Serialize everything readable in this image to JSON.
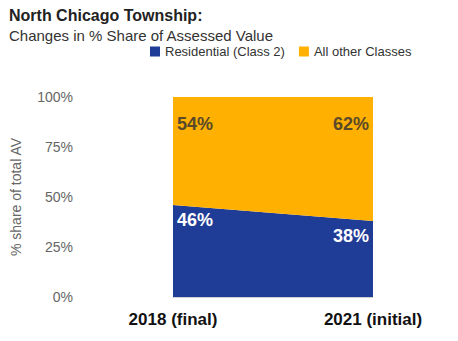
{
  "chart_data": {
    "type": "area",
    "title": "North Chicago Township:",
    "subtitle": "Changes in % Share of Assessed Value",
    "y_label": "% share of total AV",
    "categories": [
      "2018 (final)",
      "2021 (initial)"
    ],
    "series": [
      {
        "name": "Residential (Class 2)",
        "color": "#1f3c96",
        "values": [
          46,
          38
        ],
        "value_labels": [
          "46%",
          "38%"
        ]
      },
      {
        "name": "All other Classes",
        "color": "#ffb000",
        "values": [
          54,
          62
        ],
        "value_labels": [
          "54%",
          "62%"
        ]
      }
    ],
    "ylim": [
      0,
      100
    ],
    "yticks": [
      {
        "value": 0,
        "label": "0%"
      },
      {
        "value": 25,
        "label": "25%"
      },
      {
        "value": 50,
        "label": "50%"
      },
      {
        "value": 75,
        "label": "75%"
      },
      {
        "value": 100,
        "label": "100%"
      }
    ],
    "stacked": true,
    "data_labels": true,
    "grid": true,
    "legend": "top"
  }
}
